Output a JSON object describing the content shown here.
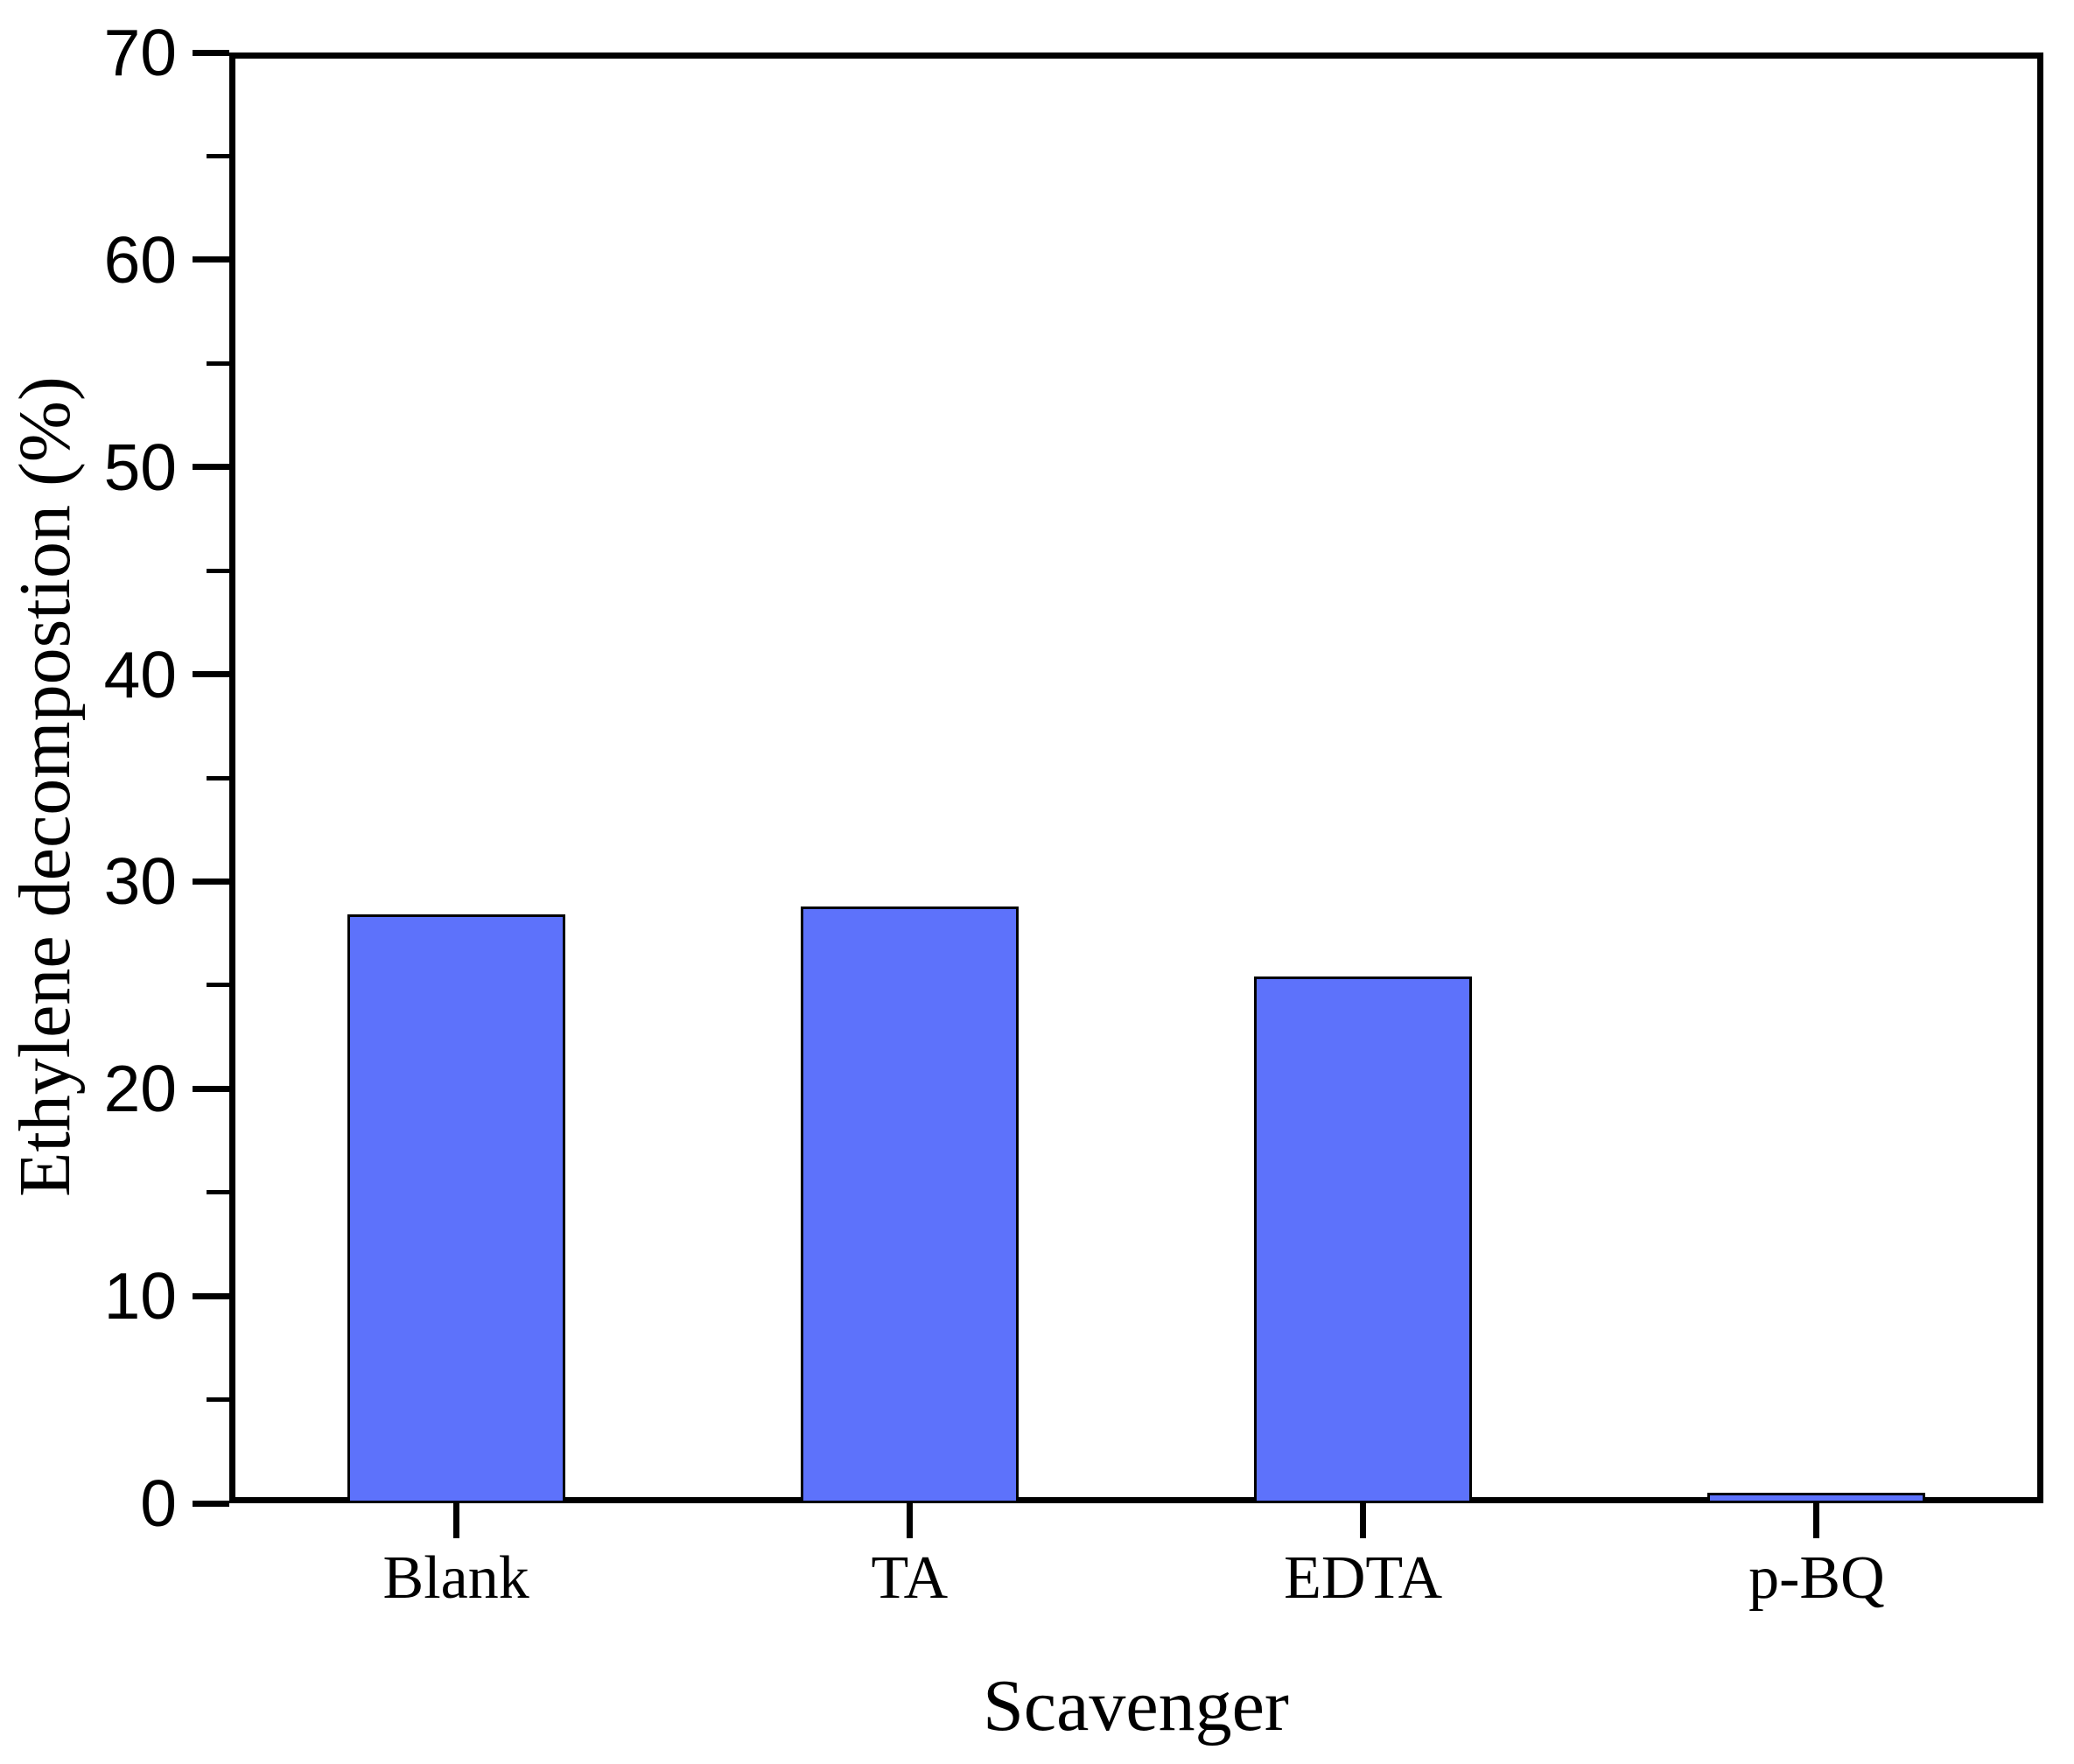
{
  "chart_data": {
    "type": "bar",
    "categories": [
      "Blank",
      "TA",
      "EDTA",
      "p-BQ"
    ],
    "values": [
      28.4,
      28.8,
      25.4,
      0.5
    ],
    "title": "",
    "xlabel": "Scavenger",
    "ylabel": "Ethylene decompostion (%)",
    "ylim": [
      0,
      70
    ],
    "ytick_step_major": 10,
    "ytick_step_minor": 5,
    "ytick_labels": [
      "0",
      "10",
      "20",
      "30",
      "40",
      "50",
      "60",
      "70"
    ],
    "bar_fill_color": "#5d72fb",
    "bar_edge_color": "#000000",
    "axis_color": "#000000",
    "background_color": "#ffffff",
    "grid": false,
    "legend": null,
    "bar_width_fraction": 0.48,
    "tick_direction": "out"
  }
}
